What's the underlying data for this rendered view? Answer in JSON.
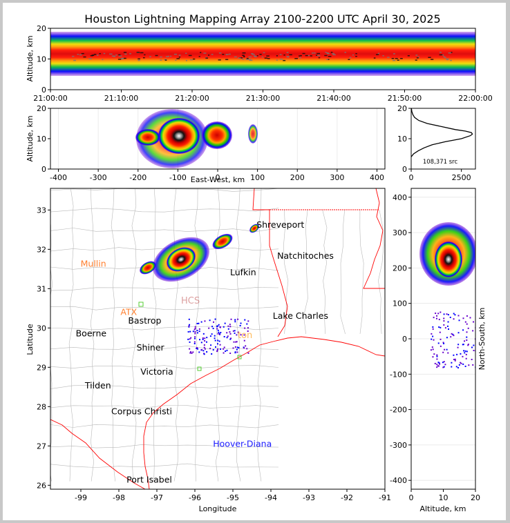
{
  "title": "Houston Lightning Mapping Array 2100-2200 UTC April 30, 2025",
  "colors": {
    "frame_bg": "#c8c8c8",
    "state_border": "#ff0000",
    "county_border": "#aaaaaa",
    "histogram_line": "#000000",
    "density_palette": [
      "#6600cc",
      "#0000ff",
      "#00bb44",
      "#22dd00",
      "#eedd00",
      "#ff9900",
      "#ff0000",
      "#cc0000",
      "#111111",
      "#888888",
      "#ffffff"
    ]
  },
  "chart_data": [
    {
      "id": "time_height",
      "type": "heatmap",
      "xlabel": "",
      "ylabel": "Altitude, km",
      "xticks": [
        "21:00:00",
        "21:10:00",
        "21:20:00",
        "21:30:00",
        "21:40:00",
        "21:50:00",
        "22:00:00"
      ],
      "ylim": [
        0,
        20
      ],
      "yticks": [
        0,
        10,
        20
      ],
      "band_center_km": 11,
      "band_core_halfwidth_km": 2.5,
      "band_outer_halfwidth_km": 9
    },
    {
      "id": "east_west_altitude",
      "type": "heatmap",
      "xlabel": "East-West, km",
      "ylabel": "Altitude, km",
      "xlim": [
        -420,
        420
      ],
      "xticks": [
        -400,
        -300,
        -200,
        -100,
        0,
        100,
        200,
        300,
        400
      ],
      "ylim": [
        0,
        20
      ],
      "yticks": [
        0,
        10,
        20
      ],
      "main_cell": {
        "x_km": -95,
        "alt_km": 11,
        "x_extent_km": [
          -210,
          30
        ],
        "core_x_km": -95
      },
      "secondary_cells": [
        {
          "x_km": 0,
          "alt_km": 12
        },
        {
          "x_km": 90,
          "alt_km": 12
        }
      ]
    },
    {
      "id": "altitude_histogram",
      "type": "line",
      "xlabel": "",
      "ylabel": "",
      "xlim": [
        0,
        3200
      ],
      "xticks": [
        0,
        2500
      ],
      "ylim": [
        0,
        20
      ],
      "yticks": [
        0,
        10,
        20
      ],
      "annotation": "108,371 src",
      "altitude_km": [
        4,
        5,
        6,
        7,
        8,
        9,
        10,
        11,
        11.5,
        12,
        12.5,
        13,
        14,
        15,
        16,
        17,
        18,
        19,
        20
      ],
      "source_counts": [
        0,
        120,
        350,
        650,
        1050,
        1700,
        2500,
        2950,
        3050,
        3000,
        2700,
        2200,
        1500,
        800,
        380,
        170,
        80,
        30,
        10
      ]
    },
    {
      "id": "plan_view",
      "type": "scatter",
      "xlabel": "Longitude",
      "ylabel": "Latitude",
      "xlim": [
        -99.8,
        -91
      ],
      "ylim": [
        25.9,
        33.55
      ],
      "xticks": [
        -99,
        -98,
        -97,
        -96,
        -95,
        -94,
        -93,
        -92,
        -91
      ],
      "yticks": [
        26,
        27,
        28,
        29,
        30,
        31,
        32,
        33
      ],
      "cities": [
        {
          "name": "Mullin",
          "lon": -98.67,
          "lat": 31.56,
          "color": "#ff8030"
        },
        {
          "name": "ATX",
          "lon": -97.74,
          "lat": 30.33,
          "color": "#ff8030"
        },
        {
          "name": "Shreveport",
          "lon": -93.75,
          "lat": 32.55,
          "color": "#000000"
        },
        {
          "name": "Natchitoches",
          "lon": -93.09,
          "lat": 31.76,
          "color": "#000000"
        },
        {
          "name": "Lufkin",
          "lon": -94.73,
          "lat": 31.34,
          "color": "#000000"
        },
        {
          "name": "Lake Charles",
          "lon": -93.22,
          "lat": 30.23,
          "color": "#000000"
        },
        {
          "name": "Bastrop",
          "lon": -97.32,
          "lat": 30.11,
          "color": "#000000"
        },
        {
          "name": "Boerne",
          "lon": -98.73,
          "lat": 29.79,
          "color": "#000000"
        },
        {
          "name": "Shiner",
          "lon": -97.17,
          "lat": 29.43,
          "color": "#000000"
        },
        {
          "name": "Victoria",
          "lon": -97.0,
          "lat": 28.81,
          "color": "#000000"
        },
        {
          "name": "Tilden",
          "lon": -98.55,
          "lat": 28.46,
          "color": "#000000"
        },
        {
          "name": "Corpus Christi",
          "lon": -97.4,
          "lat": 27.8,
          "color": "#000000"
        },
        {
          "name": "Port Isabel",
          "lon": -97.2,
          "lat": 26.07,
          "color": "#000000"
        },
        {
          "name": "Hoover-Diana",
          "lon": -94.75,
          "lat": 26.98,
          "color": "#1a1aff"
        }
      ]
    },
    {
      "id": "north_south_altitude",
      "type": "heatmap",
      "xlabel": "Altitude, km",
      "ylabel": "North-South, km",
      "xlim": [
        0,
        20
      ],
      "xticks": [
        0,
        10,
        20
      ],
      "ylim": [
        -425,
        425
      ],
      "yticks": [
        -400,
        -300,
        -200,
        -100,
        0,
        100,
        200,
        300,
        400
      ],
      "main_cell": {
        "y_km": 220,
        "alt_km": 11,
        "y_extent_km": [
          150,
          320
        ]
      },
      "scatter_region": {
        "y_km": [
          -80,
          80
        ],
        "alt_km": [
          6,
          20
        ]
      }
    }
  ]
}
